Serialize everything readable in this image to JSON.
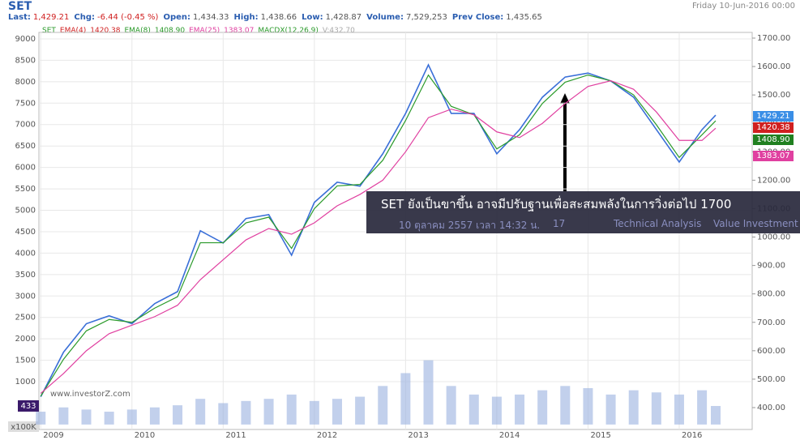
{
  "header": {
    "symbol": "SET",
    "date": "Friday 10-Jun-2016 00:00",
    "stats": [
      [
        "Last:",
        "1,429.21"
      ],
      [
        "Chg:",
        "-6.44 (-0.45 %)"
      ],
      [
        "Open:",
        "1,434.33"
      ],
      [
        "High:",
        "1,438.66"
      ],
      [
        "Low:",
        "1,428.87"
      ],
      [
        "Volume:",
        "7,529,253"
      ],
      [
        "Prev Close:",
        "1,435.65"
      ]
    ],
    "legend": [
      "SET",
      "EMA(4)",
      "1420.38",
      "EMA(8)",
      "1408.90",
      "EMA(25)",
      "1383.07",
      "MACDX(12,26,9)",
      "V:432.70"
    ],
    "tags": [
      "1429.21",
      "1420.38",
      "1408.90",
      "1383.07"
    ],
    "volume_tag": "433",
    "volume_unit": "x100K",
    "watermark": "www.investorZ.com"
  },
  "overlay": {
    "title": "SET ยังเป็นขาขึ้น อาจมีปรับฐานเพื่อสะสมพลังในการวิ่งต่อไป 1700",
    "date": "10 ตุลาคม 2557 เวลา 14:32 น.",
    "comments": "17",
    "tags": [
      "Technical Analysis",
      "Value Investment"
    ]
  },
  "chart_data": {
    "type": "line",
    "x": [
      2009.0,
      2009.25,
      2009.5,
      2009.75,
      2010.0,
      2010.25,
      2010.5,
      2010.75,
      2011.0,
      2011.25,
      2011.5,
      2011.75,
      2012.0,
      2012.25,
      2012.5,
      2012.75,
      2013.0,
      2013.25,
      2013.5,
      2013.75,
      2014.0,
      2014.25,
      2014.5,
      2014.75,
      2015.0,
      2015.25,
      2015.5,
      2015.75,
      2016.0,
      2016.25,
      2016.4
    ],
    "series": [
      {
        "name": "SET",
        "color": "#3a6fd8",
        "axis": "y2",
        "values": [
          438,
          595,
          695,
          723,
          695,
          766,
          808,
          1022,
          979,
          1065,
          1079,
          936,
          1122,
          1193,
          1179,
          1293,
          1435,
          1606,
          1435,
          1435,
          1293,
          1378,
          1492,
          1563,
          1577,
          1549,
          1492,
          1378,
          1264,
          1378,
          1429
        ]
      },
      {
        "name": "EMA(8)",
        "color": "#2a9a2a",
        "axis": "y2",
        "values": [
          440,
          570,
          670,
          710,
          700,
          750,
          790,
          980,
          980,
          1050,
          1070,
          960,
          1100,
          1180,
          1185,
          1270,
          1410,
          1570,
          1460,
          1430,
          1310,
          1360,
          1470,
          1545,
          1570,
          1550,
          1500,
          1395,
          1280,
          1360,
          1409
        ]
      },
      {
        "name": "EMA(25)",
        "color": "#e040a0",
        "axis": "y2",
        "values": [
          450,
          520,
          600,
          660,
          690,
          720,
          760,
          850,
          920,
          990,
          1030,
          1010,
          1050,
          1110,
          1150,
          1200,
          1300,
          1420,
          1450,
          1430,
          1370,
          1350,
          1400,
          1470,
          1530,
          1550,
          1520,
          1440,
          1340,
          1340,
          1383
        ]
      },
      {
        "name": "V",
        "color": "#9ab0e0",
        "axis": "y",
        "values": [
          300,
          400,
          350,
          300,
          350,
          400,
          450,
          600,
          500,
          550,
          600,
          700,
          550,
          600,
          650,
          900,
          1200,
          1500,
          900,
          700,
          650,
          700,
          800,
          900,
          850,
          700,
          800,
          750,
          700,
          800,
          433
        ]
      }
    ],
    "xlim": [
      2008.98,
      2016.8
    ],
    "xticks": [
      2009,
      2010,
      2011,
      2012,
      2013,
      2014,
      2015,
      2016
    ],
    "ylim": [
      -115,
      9151
    ],
    "yticks": [
      1000,
      1500,
      2000,
      2500,
      3000,
      3500,
      4000,
      4500,
      5000,
      5500,
      6000,
      6500,
      7000,
      7500,
      8000,
      8500,
      9000
    ],
    "y2lim": [
      323,
      1720
    ],
    "y2ticks": [
      {
        "value": 400,
        "label": "400.00"
      },
      {
        "value": 500,
        "label": "500.00"
      },
      {
        "value": 600,
        "label": "600.00"
      },
      {
        "value": 700,
        "label": "700.00"
      },
      {
        "value": 800,
        "label": "800.00"
      },
      {
        "value": 900,
        "label": "900.00"
      },
      {
        "value": 1000,
        "label": "1000.00"
      },
      {
        "value": 1100,
        "label": "1100.00"
      },
      {
        "value": 1200,
        "label": "1200.00"
      },
      {
        "value": 1300,
        "label": "1300.00"
      },
      {
        "value": 1400,
        "label": "1400.00"
      },
      {
        "value": 1500,
        "label": "1500.00"
      },
      {
        "value": 1600,
        "label": "1600.00"
      },
      {
        "value": 1700,
        "label": "1700.00"
      }
    ],
    "grid": true
  }
}
